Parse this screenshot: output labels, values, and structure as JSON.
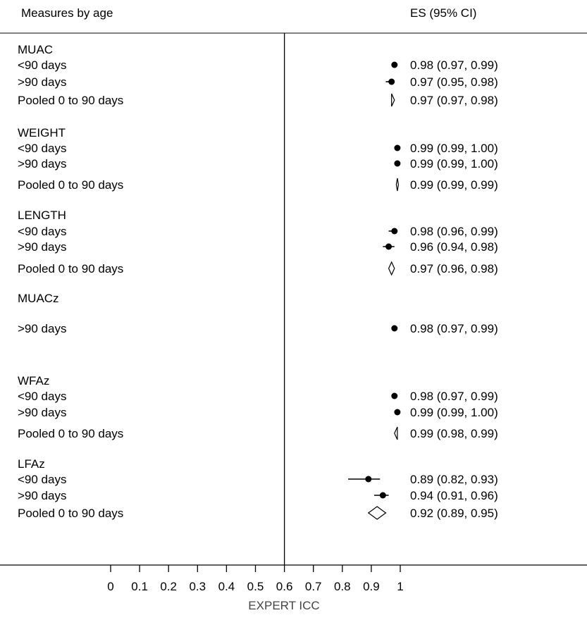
{
  "chart_data": {
    "type": "forest",
    "header_left": "Measures by age",
    "header_right": "ES (95% CI)",
    "xlabel": "EXPERT ICC",
    "x_ticks": [
      "0",
      "0.1",
      "0.2",
      "0.3",
      "0.4",
      "0.5",
      "0.6",
      "0.7",
      "0.8",
      "0.9",
      "1"
    ],
    "x_tick_values": [
      0,
      0.1,
      0.2,
      0.3,
      0.4,
      0.5,
      0.6,
      0.7,
      0.8,
      0.9,
      1.0
    ],
    "reference_line": 0.6,
    "groups": [
      {
        "name": "MUAC",
        "rows": [
          {
            "label": "<90 days",
            "kind": "study",
            "est": 0.98,
            "lo": 0.97,
            "hi": 0.99,
            "text": "0.98 (0.97, 0.99)"
          },
          {
            "label": ">90 days",
            "kind": "study",
            "est": 0.97,
            "lo": 0.95,
            "hi": 0.98,
            "text": "0.97 (0.95, 0.98)"
          },
          {
            "label": "Pooled 0 to 90 days",
            "kind": "pooled",
            "est": 0.97,
            "lo": 0.97,
            "hi": 0.98,
            "text": "0.97 (0.97, 0.98)"
          }
        ]
      },
      {
        "name": "WEIGHT",
        "rows": [
          {
            "label": "<90 days",
            "kind": "study",
            "est": 0.99,
            "lo": 0.99,
            "hi": 1.0,
            "text": "0.99 (0.99, 1.00)"
          },
          {
            "label": ">90 days",
            "kind": "study",
            "est": 0.99,
            "lo": 0.99,
            "hi": 1.0,
            "text": "0.99 (0.99, 1.00)"
          },
          {
            "label": "Pooled 0 to 90 days",
            "kind": "pooled",
            "est": 0.99,
            "lo": 0.99,
            "hi": 0.99,
            "text": "0.99 (0.99, 0.99)"
          }
        ]
      },
      {
        "name": "LENGTH",
        "rows": [
          {
            "label": "<90 days",
            "kind": "study",
            "est": 0.98,
            "lo": 0.96,
            "hi": 0.99,
            "text": "0.98 (0.96, 0.99)"
          },
          {
            "label": ">90 days",
            "kind": "study",
            "est": 0.96,
            "lo": 0.94,
            "hi": 0.98,
            "text": "0.96 (0.94, 0.98)"
          },
          {
            "label": "Pooled 0 to 90 days",
            "kind": "pooled",
            "est": 0.97,
            "lo": 0.96,
            "hi": 0.98,
            "text": "0.97 (0.96, 0.98)"
          }
        ]
      },
      {
        "name": "MUACz",
        "rows": [
          {
            "label": ">90 days",
            "kind": "study",
            "est": 0.98,
            "lo": 0.97,
            "hi": 0.99,
            "text": "0.98 (0.97, 0.99)"
          }
        ]
      },
      {
        "name": "WFAz",
        "rows": [
          {
            "label": "<90 days",
            "kind": "study",
            "est": 0.98,
            "lo": 0.97,
            "hi": 0.99,
            "text": "0.98 (0.97, 0.99)"
          },
          {
            "label": ">90 days",
            "kind": "study",
            "est": 0.99,
            "lo": 0.99,
            "hi": 1.0,
            "text": "0.99 (0.99, 1.00)"
          },
          {
            "label": "Pooled 0 to 90 days",
            "kind": "pooled",
            "est": 0.99,
            "lo": 0.98,
            "hi": 0.99,
            "text": "0.99 (0.98, 0.99)"
          }
        ]
      },
      {
        "name": "LFAz",
        "rows": [
          {
            "label": "<90 days",
            "kind": "study",
            "est": 0.89,
            "lo": 0.82,
            "hi": 0.93,
            "text": "0.89 (0.82, 0.93)"
          },
          {
            "label": ">90 days",
            "kind": "study",
            "est": 0.94,
            "lo": 0.91,
            "hi": 0.96,
            "text": "0.94 (0.91, 0.96)"
          },
          {
            "label": "Pooled 0 to 90 days",
            "kind": "pooled",
            "est": 0.92,
            "lo": 0.89,
            "hi": 0.95,
            "text": "0.92 (0.89, 0.95)"
          }
        ]
      }
    ]
  }
}
